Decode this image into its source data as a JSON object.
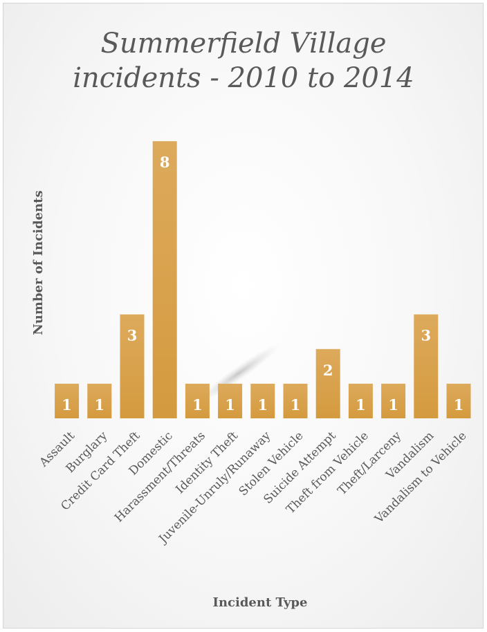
{
  "chart_data": {
    "type": "bar",
    "title_lines": [
      "Summerfield Village",
      "incidents - 2010 to 2014"
    ],
    "xlabel": "Incident Type",
    "ylabel": "Number of Incidents",
    "categories": [
      "Assault",
      "Burglary",
      "Credit Card Theft",
      "Domestic",
      "Harassment/Threats",
      "Identity Theft",
      "Juvenile-Unruly/Runaway",
      "Stolen Vehicle",
      "Suicide Attempt",
      "Theft from Vehicle",
      "Theft/Larceny",
      "Vandalism",
      "Vandalism to Vehicle"
    ],
    "values": [
      1,
      1,
      3,
      8,
      1,
      1,
      1,
      1,
      2,
      1,
      1,
      3,
      1
    ],
    "ylim": [
      0,
      8
    ],
    "grid": false,
    "legend": "none",
    "data_labels": true,
    "bar_color": "#D49A3E",
    "bar_color_light": "#DDAA5C"
  }
}
